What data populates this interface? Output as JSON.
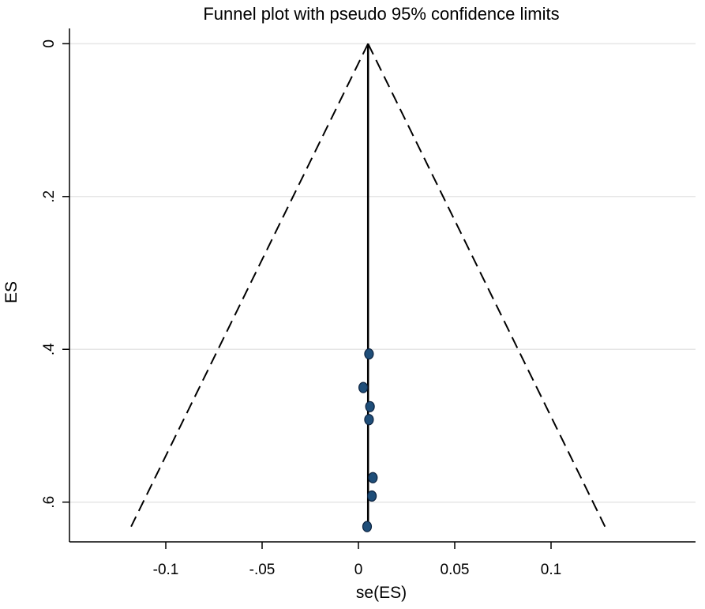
{
  "chart_data": {
    "type": "scatter",
    "title": "Funnel plot with pseudo 95% confidence limits",
    "xlabel": "se(ES)",
    "ylabel": "ES",
    "xlim": [
      -0.15,
      0.175
    ],
    "ylim": [
      -0.02,
      0.652
    ],
    "y_reversed": true,
    "grid": "horizontal",
    "legend": "none",
    "xticks": [
      {
        "value": -0.1,
        "label": "-0.1"
      },
      {
        "value": -0.05,
        "label": "-.05"
      },
      {
        "value": 0,
        "label": "0"
      },
      {
        "value": 0.05,
        "label": "0.05"
      },
      {
        "value": 0.1,
        "label": "0.1"
      }
    ],
    "xtick_marks": [
      -0.1,
      -0.05,
      0,
      0.05,
      0.1
    ],
    "yticks": [
      {
        "value": 0,
        "label": "0"
      },
      {
        "value": 0.2,
        "label": ".2"
      },
      {
        "value": 0.4,
        "label": ".4"
      },
      {
        "value": 0.6,
        "label": ".6"
      }
    ],
    "pooled_estimate": 0.005,
    "confidence_limits": {
      "apex": [
        0.005,
        0.0
      ],
      "lower_left": [
        -0.118,
        0.632
      ],
      "lower_right": [
        0.128,
        0.632
      ]
    },
    "points": [
      {
        "x": 0.0055,
        "y": 0.406
      },
      {
        "x": 0.0025,
        "y": 0.45
      },
      {
        "x": 0.006,
        "y": 0.475
      },
      {
        "x": 0.0055,
        "y": 0.492
      },
      {
        "x": 0.0075,
        "y": 0.568
      },
      {
        "x": 0.007,
        "y": 0.592
      },
      {
        "x": 0.0045,
        "y": 0.632
      }
    ],
    "colors": {
      "marker_fill": "#1f4e79",
      "marker_stroke": "#0c2340",
      "grid": "#e6e6e6",
      "axis": "#000000"
    }
  }
}
